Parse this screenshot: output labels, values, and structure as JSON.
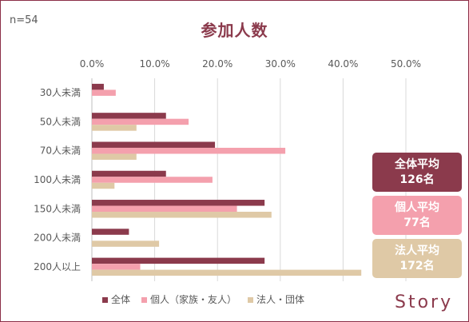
{
  "sample_note": "n=54",
  "title": "参加人数",
  "badges": [
    {
      "line1": "全体平均",
      "line2": "126名"
    },
    {
      "line1": "個人平均",
      "line2": "77名"
    },
    {
      "line1": "法人平均",
      "line2": "172名"
    }
  ],
  "brand": "Story",
  "colors": {
    "series_all": "#8b3a4c",
    "series_individual": "#f4a0ad",
    "series_corporate": "#dfc9a6",
    "frame": "#8b2f47",
    "gridline": "#d9d9d9"
  },
  "chart_data": {
    "type": "bar",
    "orientation": "horizontal",
    "title": "参加人数",
    "categories": [
      "30人未満",
      "50人未満",
      "70人未満",
      "100人未満",
      "150人未満",
      "200人未満",
      "200人以上"
    ],
    "x_ticks": [
      "0.0%",
      "10.0%",
      "20.0%",
      "30.0%",
      "40.0%",
      "50.0%"
    ],
    "xlim": [
      0,
      50
    ],
    "x_axis_position": "top",
    "grid": true,
    "legend_position": "bottom",
    "series": [
      {
        "name": "全体",
        "color": "#8b3a4c",
        "values": [
          1.9,
          11.8,
          19.6,
          11.8,
          27.5,
          5.9,
          27.5
        ]
      },
      {
        "name": "個人（家族・友人）",
        "color": "#f4a0ad",
        "values": [
          3.8,
          15.4,
          30.8,
          19.2,
          23.1,
          0,
          7.7
        ]
      },
      {
        "name": "法人・団体",
        "color": "#dfc9a6",
        "values": [
          0,
          7.1,
          7.1,
          3.6,
          28.6,
          10.7,
          42.9
        ]
      }
    ]
  }
}
